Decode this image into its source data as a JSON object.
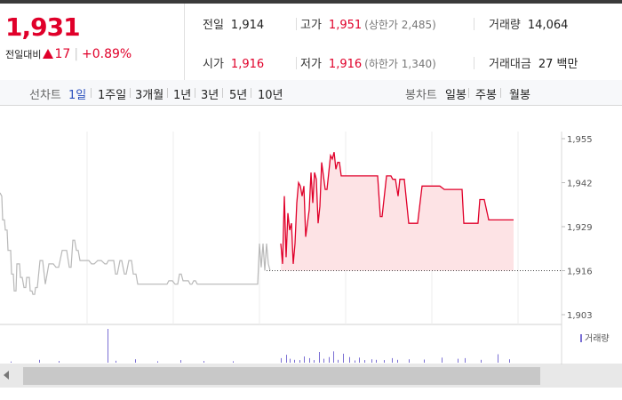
{
  "summary": {
    "price": "1,931",
    "change_label": "전일대비",
    "change_value": "17",
    "change_percent": "+0.89%",
    "stats": [
      {
        "label": "전일",
        "value": "1,914",
        "note": "",
        "red": false
      },
      {
        "label": "고가",
        "value": "1,951",
        "note": "(상한가 2,485)",
        "red": true
      },
      {
        "label": "거래량",
        "value": "14,064",
        "note": "",
        "red": false
      },
      {
        "label": "시가",
        "value": "1,916",
        "note": "",
        "red": true
      },
      {
        "label": "저가",
        "value": "1,916",
        "note": "(하한가 1,340)",
        "red": true
      },
      {
        "label": "거래대금",
        "value": "27 백만",
        "note": "",
        "red": false
      }
    ]
  },
  "toolbar": {
    "line_chart_label": "선차트",
    "periods": [
      "1일",
      "1주일",
      "3개월",
      "1년",
      "3년",
      "5년",
      "10년"
    ],
    "selected_period": "1일",
    "candle_chart_label": "봉차트",
    "candle_periods": [
      "일봉",
      "주봉",
      "월봉"
    ]
  },
  "colors": {
    "up": "#e0002a",
    "prev_day_line": "#b8b8b8",
    "fill": "#fde3e5",
    "volume": "#7a6fd4"
  },
  "chart_data": {
    "type": "line",
    "ylim": [
      1903,
      1955
    ],
    "yticks": [
      "1,955",
      "1,942",
      "1,929",
      "1,916",
      "1,903"
    ],
    "reference_line": 1916,
    "grid": true,
    "series": [
      {
        "values_x": [
          0,
          2,
          3,
          5,
          6,
          8,
          9,
          12,
          13,
          15,
          16,
          18,
          19,
          22,
          23,
          25,
          27,
          29,
          30,
          33,
          34,
          36,
          37,
          39,
          40,
          42,
          45,
          48,
          51,
          55,
          60,
          63,
          66,
          70,
          75,
          78,
          80,
          82,
          84,
          86,
          88,
          90,
          95,
          100,
          103,
          106,
          110,
          114,
          118,
          120,
          122,
          125,
          128,
          130,
          132,
          135,
          137,
          140,
          142,
          145,
          148,
          150,
          153,
          155,
          160,
          163,
          166,
          170,
          173,
          175,
          178,
          180,
          183,
          185,
          188,
          190,
          194,
          197,
          200,
          202,
          204,
          206,
          210,
          212,
          214,
          216,
          218,
          220,
          222,
          224,
          226,
          228,
          230,
          232,
          234,
          236,
          240,
          244,
          248,
          250,
          253,
          256,
          260,
          264,
          268,
          272,
          276,
          280,
          284,
          286,
          288,
          290,
          292,
          294,
          296,
          298,
          300,
          302,
          304
        ],
        "values": [
          1939,
          1938,
          1931,
          1931,
          1928,
          1928,
          1922,
          1922,
          1915,
          1915,
          1910,
          1910,
          1918,
          1918,
          1914,
          1914,
          1911,
          1911,
          1914,
          1914,
          1910,
          1910,
          1909,
          1909,
          1911,
          1911,
          1919,
          1919,
          1912,
          1918,
          1918,
          1917,
          1917,
          1922,
          1922,
          1917,
          1917,
          1925,
          1925,
          1922,
          1922,
          1919,
          1919,
          1919,
          1918,
          1918,
          1919,
          1919,
          1918,
          1918,
          1919,
          1919,
          1919,
          1915,
          1915,
          1919,
          1919,
          1915,
          1915,
          1919,
          1919,
          1915,
          1915,
          1912,
          1912,
          1912,
          1912,
          1912,
          1912,
          1912,
          1912,
          1912,
          1912,
          1912,
          1912,
          1913,
          1913,
          1912,
          1912,
          1915,
          1915,
          1913,
          1913,
          1913,
          1912,
          1912,
          1913,
          1913,
          1912,
          1912,
          1912,
          1912,
          1912,
          1912,
          1912,
          1912,
          1912,
          1912,
          1912,
          1912,
          1912,
          1912,
          1912,
          1912,
          1912,
          1912,
          1912,
          1912,
          1912,
          1912,
          1912,
          1912,
          1924,
          1917,
          1924,
          1916,
          1924,
          1918,
          1916
        ]
      },
      {
        "values_x": [
          316,
          318,
          320,
          322,
          324,
          326,
          328,
          330,
          332,
          334,
          336,
          338,
          340,
          342,
          344,
          346,
          348,
          350,
          352,
          354,
          356,
          358,
          360,
          362,
          364,
          366,
          368,
          370,
          372,
          374,
          376,
          378,
          380,
          382,
          384,
          386,
          388,
          390,
          392,
          394,
          396,
          398,
          400,
          405,
          410,
          415,
          420,
          425,
          428,
          430,
          435,
          440,
          442,
          445,
          448,
          450,
          455,
          460,
          465,
          470,
          475,
          480,
          485,
          490,
          495,
          500,
          505,
          510,
          515,
          520,
          522,
          525,
          530,
          535,
          538,
          540,
          545,
          550,
          560,
          570,
          578
        ],
        "values": [
          1924,
          1918,
          1938,
          1920,
          1933,
          1928,
          1930,
          1918,
          1924,
          1936,
          1942,
          1941,
          1938,
          1941,
          1926,
          1930,
          1934,
          1945,
          1936,
          1945,
          1943,
          1930,
          1935,
          1948,
          1944,
          1940,
          1940,
          1945,
          1950,
          1949,
          1951,
          1946,
          1948,
          1948,
          1944,
          1944,
          1944,
          1944,
          1944,
          1944,
          1944,
          1944,
          1944,
          1944,
          1944,
          1944,
          1944,
          1944,
          1932,
          1932,
          1944,
          1944,
          1943,
          1943,
          1938,
          1943,
          1943,
          1930,
          1930,
          1930,
          1941,
          1941,
          1941,
          1941,
          1941,
          1940,
          1940,
          1940,
          1940,
          1940,
          1930,
          1930,
          1930,
          1930,
          1930,
          1937,
          1937,
          1931,
          1931,
          1931,
          1931
        ]
      }
    ],
    "volume": {
      "x": [
        12,
        44,
        66,
        121,
        130,
        152,
        177,
        203,
        229,
        262,
        316,
        322,
        326,
        331,
        337,
        342,
        348,
        353,
        359,
        364,
        370,
        375,
        380,
        386,
        393,
        399,
        404,
        410,
        418,
        423,
        432,
        441,
        447,
        460,
        477,
        497,
        515,
        523,
        541,
        560,
        573
      ],
      "values": [
        4,
        10,
        6,
        120,
        7,
        12,
        5,
        9,
        6,
        5,
        16,
        28,
        14,
        10,
        9,
        22,
        16,
        9,
        38,
        14,
        20,
        40,
        10,
        32,
        20,
        8,
        18,
        9,
        12,
        10,
        9,
        16,
        10,
        12,
        11,
        18,
        14,
        16,
        10,
        30,
        12
      ],
      "legend": "거래량"
    }
  }
}
